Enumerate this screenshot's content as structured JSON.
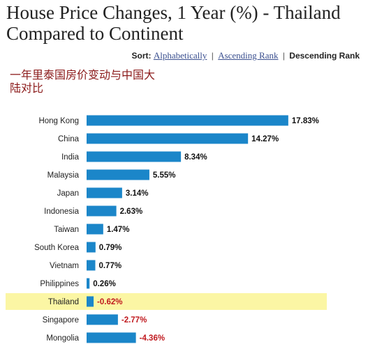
{
  "title": "House Price Changes, 1 Year (%) - Thailand Compared to Continent",
  "sort": {
    "label": "Sort:",
    "options": [
      "Alphabetically",
      "Ascending Rank",
      "Descending Rank"
    ],
    "active": "Descending Rank"
  },
  "note": "一年里泰国房价变动与中国大陆对比",
  "colors": {
    "bar": "#1b86c9",
    "positive_label": "#111111",
    "negative_label": "#c0191e",
    "highlight": "#fbf6a4"
  },
  "chart_data": {
    "type": "bar",
    "orientation": "horizontal",
    "categories": [
      "Hong Kong",
      "China",
      "India",
      "Malaysia",
      "Japan",
      "Indonesia",
      "Taiwan",
      "South Korea",
      "Vietnam",
      "Philippines",
      "Thailand",
      "Singapore",
      "Mongolia"
    ],
    "values": [
      17.83,
      14.27,
      8.34,
      5.55,
      3.14,
      2.63,
      1.47,
      0.79,
      0.77,
      0.26,
      -0.62,
      -2.77,
      -4.36
    ],
    "value_labels": [
      "17.83%",
      "14.27%",
      "8.34%",
      "5.55%",
      "3.14%",
      "2.63%",
      "1.47%",
      "0.79%",
      "0.77%",
      "0.26%",
      "-0.62%",
      "-2.77%",
      "-4.36%"
    ],
    "highlighted_category": "Thailand",
    "bars_show_magnitude": true,
    "title": "",
    "xlabel": "",
    "ylabel": ""
  }
}
